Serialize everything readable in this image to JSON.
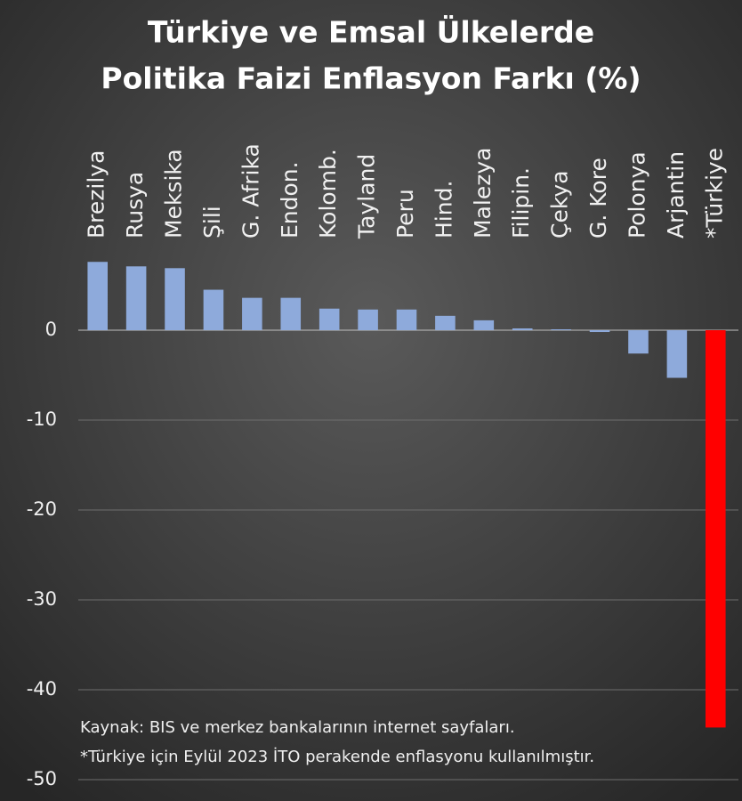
{
  "chart_data": {
    "type": "bar",
    "title": [
      "Türkiye ve Emsal Ülkelerde",
      "Politika Faizi Enflasyon Farkı (%)"
    ],
    "categories": [
      "Brezilya",
      "Rusya",
      "Meksika",
      "Şili",
      "G. Afrika",
      "Endon.",
      "Kolomb.",
      "Tayland",
      "Peru",
      "Hind.",
      "Malezya",
      "Filipin.",
      "Çekya",
      "G. Kore",
      "Polonya",
      "Arjantin",
      "*Türkiye"
    ],
    "values": [
      7.6,
      7.1,
      6.9,
      4.5,
      3.6,
      3.6,
      2.4,
      2.3,
      2.3,
      1.6,
      1.1,
      0.2,
      0.1,
      -0.2,
      -2.6,
      -5.3,
      -44.2
    ],
    "colors": [
      "#8eaadb",
      "#8eaadb",
      "#8eaadb",
      "#8eaadb",
      "#8eaadb",
      "#8eaadb",
      "#8eaadb",
      "#8eaadb",
      "#8eaadb",
      "#8eaadb",
      "#8eaadb",
      "#8eaadb",
      "#8eaadb",
      "#8eaadb",
      "#8eaadb",
      "#8eaadb",
      "#ff0000"
    ],
    "ylim": [
      -50,
      8
    ],
    "yticks": [
      -50,
      -40,
      -30,
      -20,
      -10,
      0
    ],
    "grid": true,
    "notes": [
      "Kaynak: BIS ve merkez bankalarının internet sayfaları.",
      "*Türkiye için Eylül 2023 İTO perakende enflasyonu kullanılmıştır."
    ]
  }
}
